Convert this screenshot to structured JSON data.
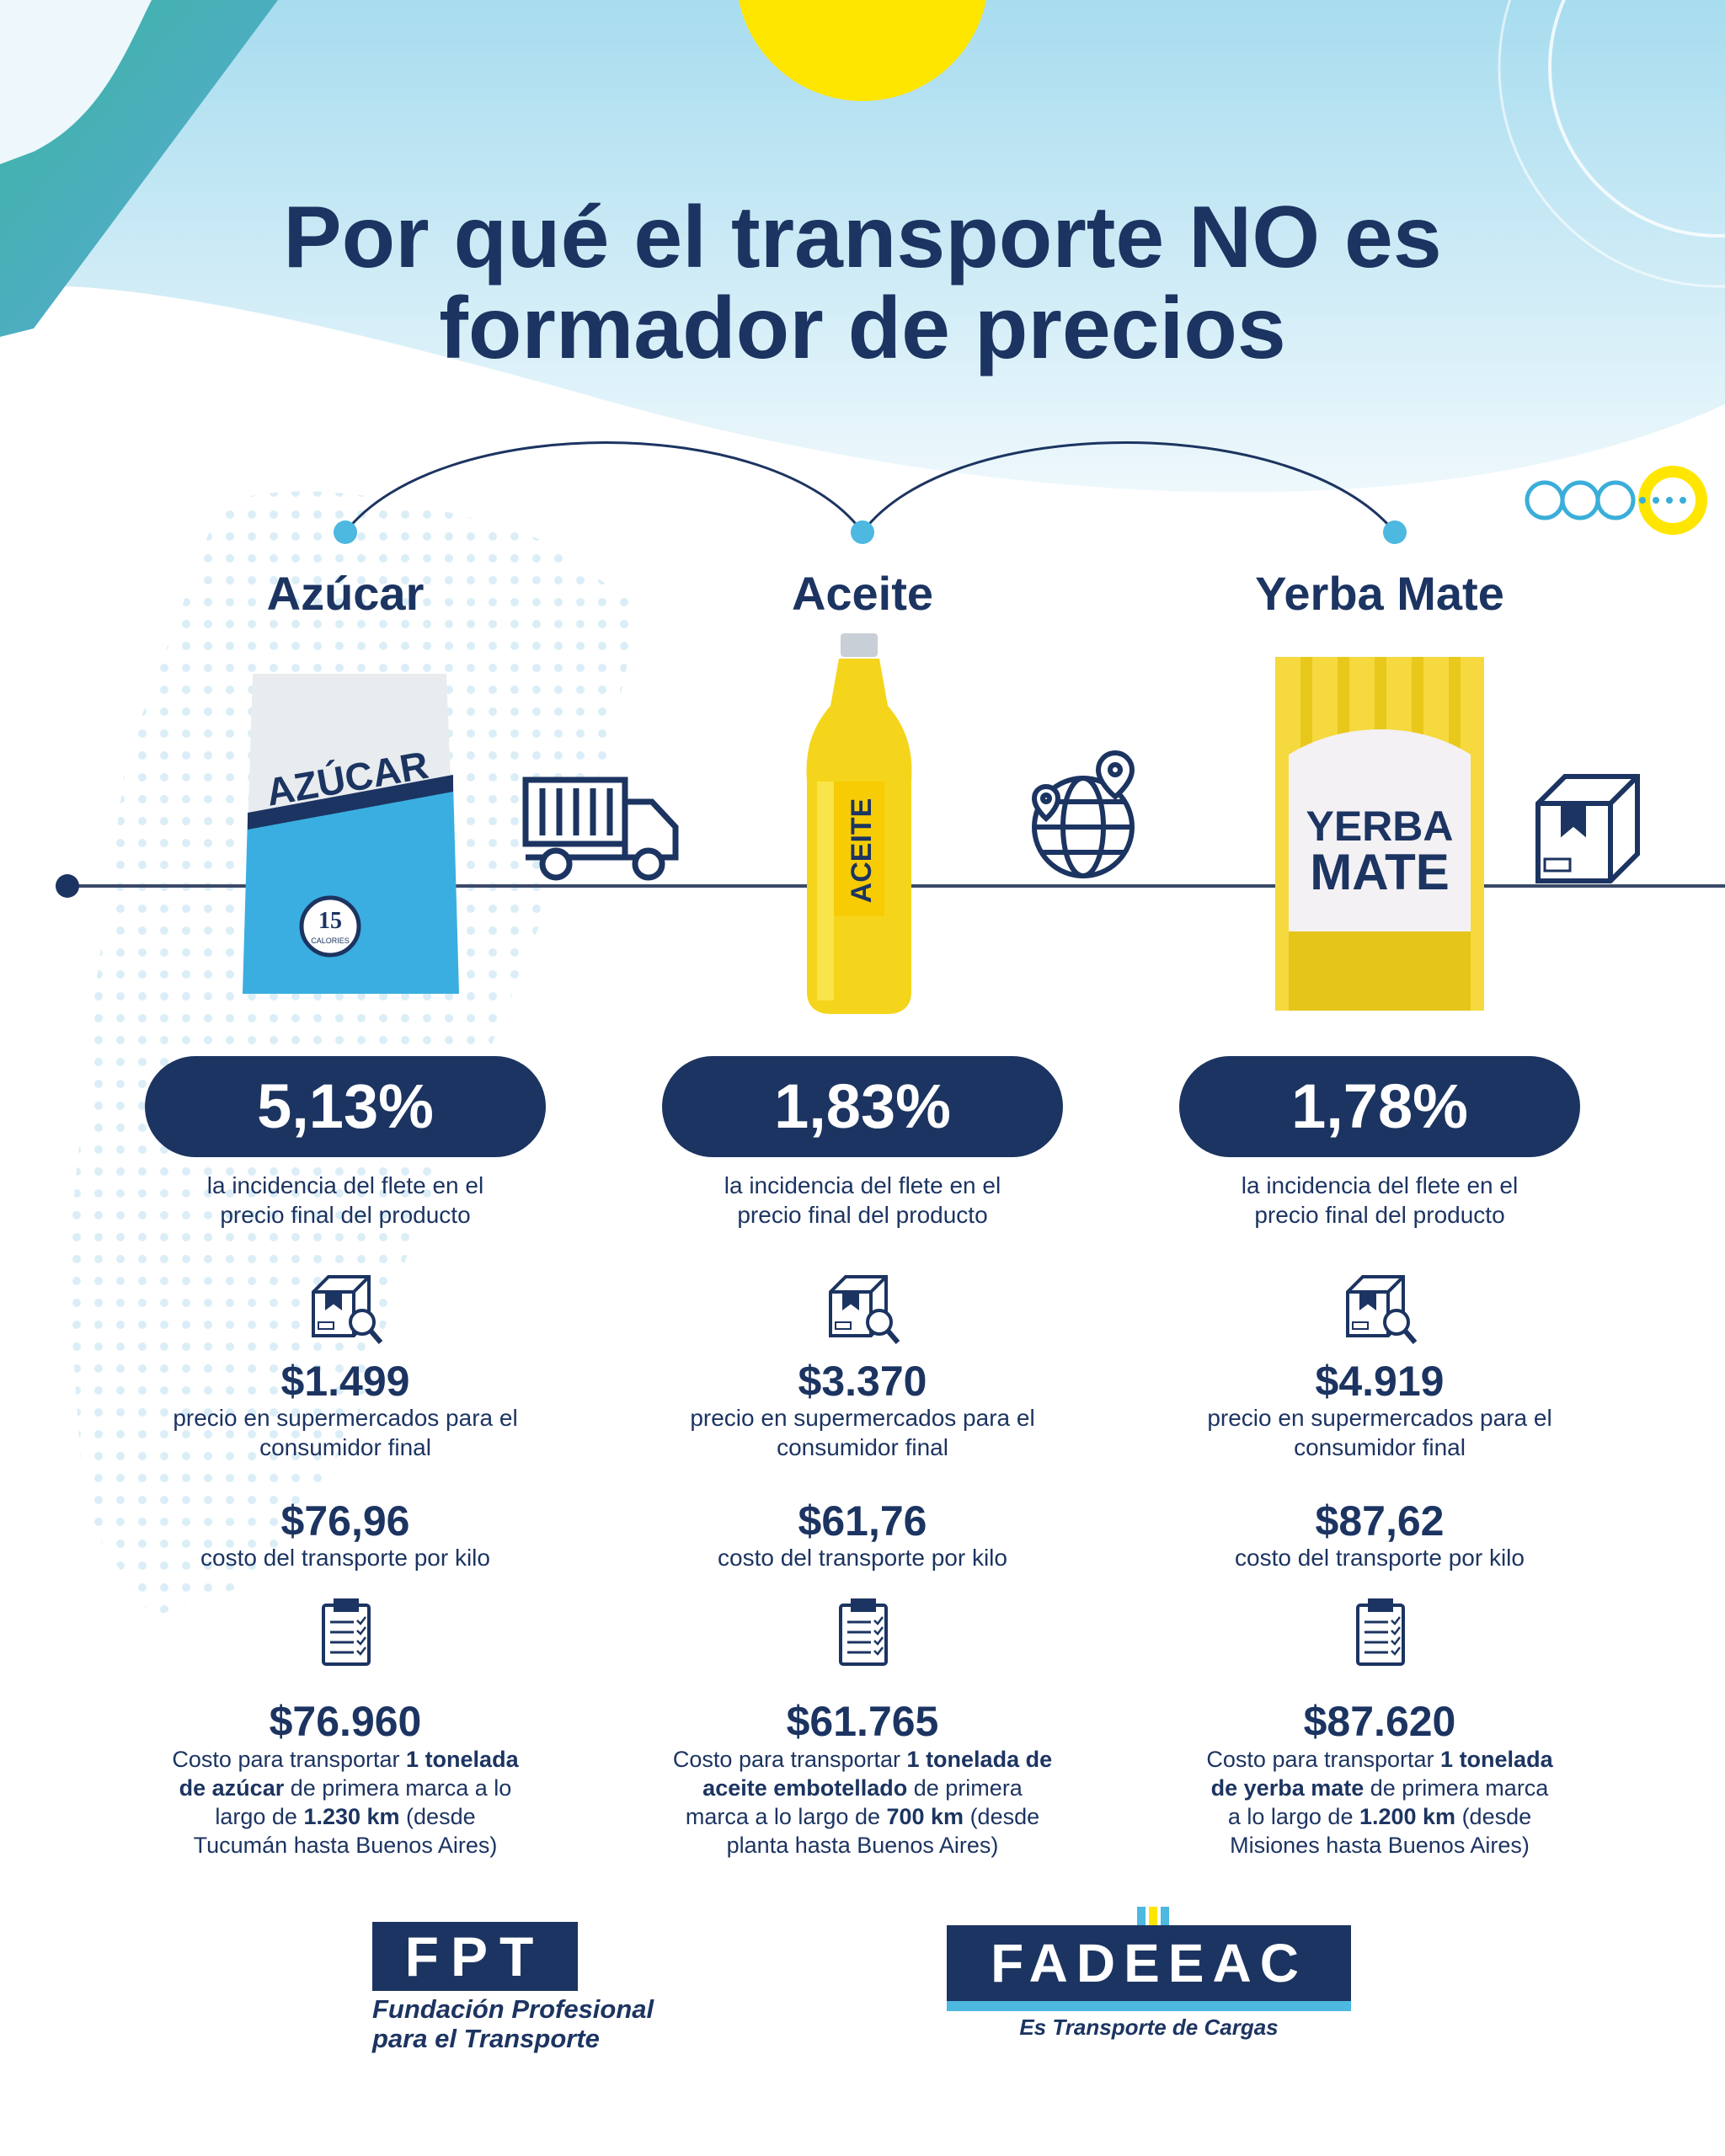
{
  "title_line1": "Por qué el transporte NO es",
  "title_line2": "formador de precios",
  "products": [
    {
      "name": "Azúcar",
      "package_label": "AZÚCAR",
      "package_badge": "15",
      "package_badge_sub": "CALORIES",
      "incidence": "5,13%",
      "incidence_line1": "la incidencia del flete en el",
      "incidence_line2": "precio final del producto",
      "price": "$1.499",
      "price_line1": "precio en supermercados para el",
      "price_line2": "consumidor final",
      "cost_kilo": "$76,96",
      "cost_kilo_text": "costo del transporte por kilo",
      "cost_ton": "$76.960",
      "desc_a": "Costo para transportar ",
      "desc_b": "1 tonelada",
      "desc_c": "de azúcar",
      "desc_d": " de primera marca a lo",
      "desc_e": "largo de ",
      "desc_f": "1.230 km",
      "desc_g": " (desde",
      "desc_h": "Tucumán hasta Buenos Aires)"
    },
    {
      "name": "Aceite",
      "package_label": "ACEITE",
      "incidence": "1,83%",
      "incidence_line1": "la incidencia del flete en el",
      "incidence_line2": "precio final del producto",
      "price": "$3.370",
      "price_line1": "precio en supermercados para el",
      "price_line2": "consumidor final",
      "cost_kilo": "$61,76",
      "cost_kilo_text": "costo del transporte por kilo",
      "cost_ton": "$61.765",
      "desc_a": "Costo para transportar ",
      "desc_b": "1 tonelada de",
      "desc_c": "aceite embotellado",
      "desc_d": " de primera",
      "desc_e": "marca a lo largo de ",
      "desc_f": "700 km",
      "desc_g": " (desde",
      "desc_h": "planta hasta Buenos Aires)"
    },
    {
      "name": "Yerba Mate",
      "package_label_1": "YERBA",
      "package_label_2": "MATE",
      "incidence": "1,78%",
      "incidence_line1": "la incidencia del flete en el",
      "incidence_line2": "precio final del producto",
      "price": "$4.919",
      "price_line1": "precio en supermercados para el",
      "price_line2": "consumidor final",
      "cost_kilo": "$87,62",
      "cost_kilo_text": "costo del transporte por kilo",
      "cost_ton": "$87.620",
      "desc_a": "Costo para transportar ",
      "desc_b": "1 tonelada",
      "desc_c": "de yerba mate",
      "desc_d": " de primera marca",
      "desc_e": "a lo largo de ",
      "desc_f": "1.200 km",
      "desc_g": " (desde",
      "desc_h": "Misiones hasta Buenos Aires)"
    }
  ],
  "logos": {
    "fpt": "FPT",
    "fpt_sub_1": "Fundación Profesional",
    "fpt_sub_2": "para el Transporte",
    "fadeeac": "FADEEAC",
    "fadeeac_sub": "Es Transporte de Cargas"
  },
  "icons": [
    "truck-icon",
    "globe-location-icon",
    "box-icon",
    "box-search-icon",
    "clipboard-icon"
  ],
  "colors": {
    "navy": "#1c3461",
    "sky": "#4db8e0",
    "yellow": "#ffe600",
    "teal": "#3aa99f"
  }
}
